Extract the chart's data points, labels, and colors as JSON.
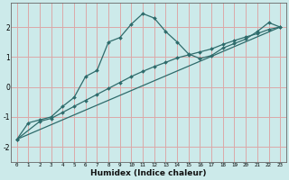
{
  "xlabel": "Humidex (Indice chaleur)",
  "bg_color": "#cceaea",
  "grid_color": "#dba8a8",
  "line_color": "#2e6b6b",
  "xlim": [
    -0.5,
    23.5
  ],
  "ylim": [
    -2.5,
    2.8
  ],
  "xticks": [
    0,
    1,
    2,
    3,
    4,
    5,
    6,
    7,
    8,
    9,
    10,
    11,
    12,
    13,
    14,
    15,
    16,
    17,
    18,
    19,
    20,
    21,
    22,
    23
  ],
  "yticks": [
    -2,
    -1,
    0,
    1,
    2
  ],
  "curve1_x": [
    0,
    1,
    2,
    3,
    4,
    5,
    6,
    7,
    8,
    9,
    10,
    11,
    12,
    13,
    14,
    15,
    16,
    17,
    18,
    19,
    20,
    21,
    22,
    23
  ],
  "curve1_y": [
    -1.75,
    -1.2,
    -1.1,
    -1.0,
    -0.65,
    -0.35,
    0.35,
    0.55,
    1.5,
    1.65,
    2.1,
    2.45,
    2.3,
    1.85,
    1.5,
    1.1,
    0.95,
    1.05,
    1.3,
    1.45,
    1.6,
    1.85,
    2.15,
    2.0
  ],
  "curve2_x": [
    0,
    2,
    3,
    4,
    5,
    6,
    7,
    8,
    9,
    10,
    11,
    12,
    13,
    14,
    15,
    16,
    17,
    18,
    19,
    20,
    21,
    22,
    23
  ],
  "curve2_y": [
    -1.75,
    -1.15,
    -1.05,
    -0.85,
    -0.65,
    -0.45,
    -0.25,
    -0.05,
    0.15,
    0.35,
    0.52,
    0.68,
    0.82,
    0.97,
    1.07,
    1.17,
    1.27,
    1.42,
    1.55,
    1.67,
    1.78,
    1.92,
    2.0
  ],
  "curve3_x": [
    0,
    23
  ],
  "curve3_y": [
    -1.75,
    2.0
  ]
}
